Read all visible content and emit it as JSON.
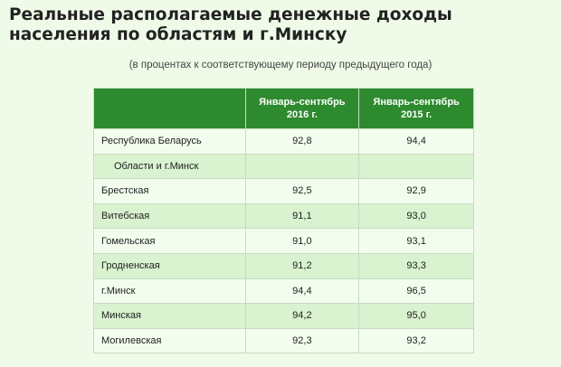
{
  "header": {
    "title": "Реальные располагаемые денежные доходы населения по областям и г.Минску",
    "subtitle": "(в процентах к соответствующему периоду предыдущего года)"
  },
  "table": {
    "columns": [
      "",
      "Январь-сентябрь 2016 г.",
      "Январь-сентябрь 2015 г."
    ],
    "rows": [
      [
        "Республика Беларусь",
        "92,8",
        "94,4"
      ],
      [
        "Области и г.Минск",
        "",
        ""
      ],
      [
        "Брестская",
        "92,5",
        "92,9"
      ],
      [
        "Витебская",
        "91,1",
        "93,0"
      ],
      [
        "Гомельская",
        "91,0",
        "93,1"
      ],
      [
        "Гродненская",
        "91,2",
        "93,3"
      ],
      [
        "г.Минск",
        "94,4",
        "96,5"
      ],
      [
        "Минская",
        "94,2",
        "95,0"
      ],
      [
        "Могилевская",
        "92,3",
        "93,2"
      ]
    ]
  }
}
